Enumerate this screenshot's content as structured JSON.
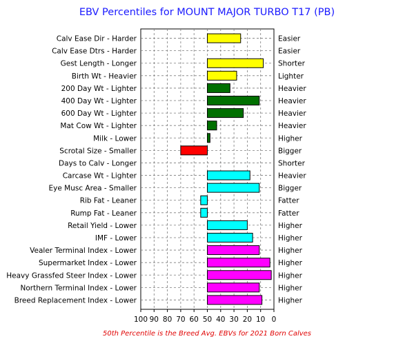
{
  "chart_data": {
    "type": "bar",
    "orientation": "horizontal",
    "title": "EBV Percentiles for MOUNT MAJOR TURBO T17 (PB)",
    "footnote": "50th Percentile is the Breed Avg. EBVs for 2021 Born Calves",
    "xlim": [
      100,
      0
    ],
    "x_reversed": true,
    "baseline": 50,
    "x_ticks": [
      100,
      90,
      80,
      70,
      60,
      50,
      40,
      30,
      20,
      10,
      0
    ],
    "grid": true,
    "bars": [
      {
        "label": "Calv Ease Dir - Harder",
        "right_label": "Easier",
        "value": 25,
        "color": "#ffff00"
      },
      {
        "label": "Calv Ease Dtrs - Harder",
        "right_label": "Easier",
        "value": null,
        "color": "#ffff00"
      },
      {
        "label": "Gest Length - Longer",
        "right_label": "Shorter",
        "value": 8,
        "color": "#ffff00"
      },
      {
        "label": "Birth Wt - Heavier",
        "right_label": "Lighter",
        "value": 28,
        "color": "#ffff00"
      },
      {
        "label": "200 Day Wt - Lighter",
        "right_label": "Heavier",
        "value": 33,
        "color": "#007000"
      },
      {
        "label": "400 Day Wt - Lighter",
        "right_label": "Heavier",
        "value": 11,
        "color": "#007000"
      },
      {
        "label": "600 Day Wt - Lighter",
        "right_label": "Heavier",
        "value": 23,
        "color": "#007000"
      },
      {
        "label": "Mat Cow Wt - Lighter",
        "right_label": "Heavier",
        "value": 43,
        "color": "#007000"
      },
      {
        "label": "Milk - Lower",
        "right_label": "Higher",
        "value": 48,
        "color": "#007000"
      },
      {
        "label": "Scrotal Size - Smaller",
        "right_label": "Bigger",
        "value": 70,
        "color": "#ff0000"
      },
      {
        "label": "Days to Calv - Longer",
        "right_label": "Shorter",
        "value": null,
        "color": "#ff0000"
      },
      {
        "label": "Carcase Wt - Lighter",
        "right_label": "Heavier",
        "value": 18,
        "color": "#00ffff"
      },
      {
        "label": "Eye Musc Area - Smaller",
        "right_label": "Bigger",
        "value": 11,
        "color": "#00ffff"
      },
      {
        "label": "Rib Fat - Leaner",
        "right_label": "Fatter",
        "value": 55,
        "color": "#00ffff"
      },
      {
        "label": "Rump Fat - Leaner",
        "right_label": "Fatter",
        "value": 55,
        "color": "#00ffff"
      },
      {
        "label": "Retail Yield - Lower",
        "right_label": "Higher",
        "value": 20,
        "color": "#00ffff"
      },
      {
        "label": "IMF - Lower",
        "right_label": "Higher",
        "value": 16,
        "color": "#00ffff"
      },
      {
        "label": "Vealer Terminal Index - Lower",
        "right_label": "Higher",
        "value": 11,
        "color": "#ff00ff"
      },
      {
        "label": "Supermarket Index - Lower",
        "right_label": "Higher",
        "value": 3,
        "color": "#ff00ff"
      },
      {
        "label": "Heavy Grassfed Steer Index - Lower",
        "right_label": "Higher",
        "value": 2,
        "color": "#ff00ff"
      },
      {
        "label": "Northern Terminal Index - Lower",
        "right_label": "Higher",
        "value": 11,
        "color": "#ff00ff"
      },
      {
        "label": "Breed Replacement Index - Lower",
        "right_label": "Higher",
        "value": 9,
        "color": "#ff00ff"
      }
    ]
  }
}
